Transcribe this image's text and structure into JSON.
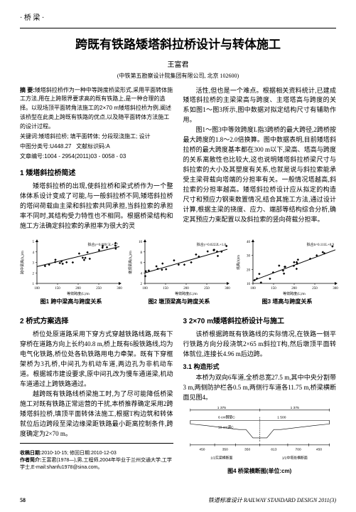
{
  "category": "桥 梁",
  "title": "跨既有铁路矮塔斜拉桥设计与转体施工",
  "author": "王富君",
  "affil": "(中铁第五勘察设计院集团有限公司, 北京 102600)",
  "abstract_label": "摘 要:",
  "abstract_text": "矮塔斜拉桥作为一种中等跨度桥梁形式,采用平面转体施工方法,用在上跨限界要求高的既有铁路上,是一种合理的选择。以现场顶平面转角法施工的2×70 m矮塔斜拉桥为例,阐述该桥型在此类上跨既有铁路的优点,以及随平面转体方法施工的设计过程。",
  "keywords_label": "关键词:",
  "keywords_text": "矮塔斜拉桥; 填平面转体; 分段现浇施工; 设计",
  "clc_label": "中图分类号:",
  "clc_text": "U448.27",
  "doctype_label": "文献标识码:",
  "doctype_text": "A",
  "docid_label": "文章编号:",
  "docid_text": "1004 - 2954(2011)03 - 0058 - 03",
  "h1": "1 矮塔斜拉桥简述",
  "p1a": "矮塔斜拉桥的出现,使斜拉桥和梁式桥作为一个整体体系设计变成了可能,与一般斜拉桥不同,矮塔斜拉桥的塔间荷载由主梁和斜拉索共同承担,当斜拉索的承担率不同时,其结构受力特性也不相同。根据桥梁结构和施工方法确定斜拉索的承担率为很大的灵",
  "col2_top": "活性,但也是一个难点。根据相关资料统计,已建成矮塔斜拉桥的主梁梁高与跨度、主塔塔高与跨度的关系如图1～图3所示,图中数据对拟定结构尺寸有辅助作用。",
  "col2_p2": "图1～图3中等效跨度L指3跨桥的最大跨径,2跨桥按最大跨度的1.8～2.0倍换算。图中数据表明,目前矮塔斜拉桥的最大跨度基本都在300 m以下,梁高、塔高与跨度的关系离散性也比较大,这也说明矮塔斜拉桥梁尺寸与斜拉索的大小及其塑度有关系,也就是说与斜拉索能承受主梁荷载向塔端的分担率有关。一般情况塔越高,斜拉索的分担率越高。矮塔斜拉桥设计应从拟定的构造尺寸和预应力钢束数置情况,结合其施工方法,通过设计计算,根据主梁的挠度、应力、端部等结构综合分析,确定其预应力束配置以及斜拉索的竖向荷载分担率。",
  "fig1_eq": "拟合y=0.009 5L+1.7",
  "fig2_eq": "拟合y=0.0222L+1.8",
  "fig3_eq": "拟合h=0.111L+0.9",
  "fig1_cap": "图1 跨中梁高与跨度关系",
  "fig2_cap": "图2 墩顶梁高与跨度关系",
  "fig3_cap": "图3 塔高与跨度关系",
  "h2": "2 桥式方案选择",
  "p2": "桥位处原道路采用下穿方式穿越铁路线路,既有下穿桥在道路方向上长约40.8 m,桥上既有6股铁路线,均为电气化铁路,桥位处各轨铁路用电力牵架。既有下穿框架桥为3孔桥,中间孔为机动车道,两边孔为非机动车道。根据城市建设要求,原中间孔改为慢车通道梁,机动车道通过上跨铁路通过。",
  "p2b": "越跨既有铁路线桥梁施工时,为了尽可能降低桥梁施工对既有铁路正常运营的干扰,本桥推荐确定采用2跨矮塔斜拉桥,填顶平面转体法施工,根据T构边筑和转体就位后边跨段至梁边缘梁距铁路最小距离控制条件,跨度确定为2×70 m。",
  "h3": "3 2×70 m矮塔斜拉桥设计与施工",
  "p3a": "该桥根据跨既有铁路线的实际情况,在铁路一侧平行铁路方向分段浇筑2×65 m斜拉T构,然后墩顶平面转体就位,连接长4.96 m后边跨。",
  "sub31": "3.1 构造形式",
  "p31": "本桥为双向6车道,全桥总宽27.5 m,其中中央分割带3 m,两侧防护栏各0.5 m,两侧行车道各11.75 m,桥梁横断面见图4。",
  "fig4_cap": "图4 桥梁横断图(单位:cm)",
  "dim_1375a": "1 375",
  "dim_1375b": "1 375",
  "dim_6c_a": "6 cm钢垫C",
  "dim_10c": "10 cm调C",
  "dim_1500": "1 500",
  "dim_450a": "450",
  "dim_350a": "350",
  "dim_350b": "350",
  "dim_813": "813",
  "dim_700": "700",
  "dim_450b": "450",
  "dim_half_label_a": "1/2实梁横断面",
  "dim_half_label_b": "1/2中塔处横断面",
  "recv_label": "收稿日期:",
  "recv_text": "2010-10-15; 修回日期:2010-12-03",
  "author_info_label": "作者简介:",
  "author_info_text": "王富君(1978—),男,工程师,2004年毕业于兰州交通大学,工学学士,E-mail:shanfu1978@sina.com。",
  "page_no": "58",
  "journal": "铁道标准设计 RAILWAY STANDARD DESIGN 2011(3)",
  "chart": {
    "type": "scatter",
    "x_label": "等效跨度(L)/m",
    "x_ticks": [
      100,
      150,
      200,
      250,
      300
    ],
    "fig1": {
      "y_label": "跨中梁高(h₀)/m",
      "y_ticks": [
        1,
        2,
        3,
        4,
        5
      ],
      "trend_from": [
        100,
        2.6
      ],
      "trend_to": [
        300,
        4.5
      ]
    },
    "fig2": {
      "y_label": "墩顶梁高(h₀)/m",
      "y_ticks": [
        2,
        4,
        6,
        8,
        10
      ],
      "trend_from": [
        100,
        4.0
      ],
      "trend_to": [
        300,
        8.5
      ]
    },
    "fig3": {
      "y_label": "塔高(h)/m",
      "y_ticks": [
        10,
        20,
        30,
        40
      ],
      "trend_from": [
        100,
        12
      ],
      "trend_to": [
        300,
        34
      ]
    },
    "point_color": "#000000",
    "line_color": "#000000",
    "axis_color": "#000000",
    "bg": "#ffffff"
  }
}
